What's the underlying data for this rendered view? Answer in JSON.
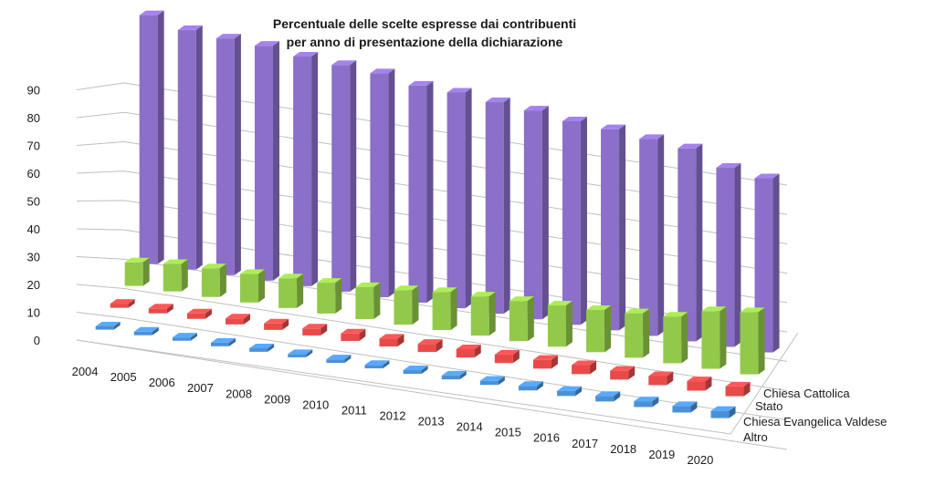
{
  "chart_data": {
    "type": "bar",
    "title_lines": [
      "Percentuale delle scelte espresse dai contribuenti",
      "per anno di presentazione della dichiarazione"
    ],
    "categories": [
      "2004",
      "2005",
      "2006",
      "2007",
      "2008",
      "2009",
      "2010",
      "2011",
      "2012",
      "2013",
      "2014",
      "2015",
      "2016",
      "2017",
      "2018",
      "2019",
      "2020"
    ],
    "y_ticks": [
      "0",
      "10",
      "20",
      "30",
      "40",
      "50",
      "60",
      "70",
      "80",
      "90"
    ],
    "ylim": [
      0,
      90
    ],
    "grid": true,
    "series": [
      {
        "name": "Altro",
        "color": "#4a90d9",
        "values": [
          1.2,
          1.3,
          1.2,
          1.3,
          1.3,
          1.2,
          1.3,
          1.3,
          1.4,
          1.5,
          1.6,
          1.8,
          2.0,
          2.2,
          2.3,
          2.6,
          2.9
        ]
      },
      {
        "name": "Chiesa Evangelica Valdese",
        "color": "#e84a4a",
        "values": [
          1.5,
          1.8,
          2.0,
          2.2,
          2.4,
          2.6,
          2.8,
          3.0,
          3.1,
          3.2,
          3.3,
          3.4,
          3.5,
          3.5,
          3.6,
          3.8,
          3.9
        ]
      },
      {
        "name": "Stato",
        "color": "#93c94a",
        "values": [
          8.5,
          10.0,
          10.5,
          10.5,
          11.0,
          11.5,
          12.0,
          13.0,
          14.5,
          15.0,
          15.5,
          16.0,
          16.5,
          17.5,
          18.5,
          23.0,
          25.0
        ]
      },
      {
        "name": "Chiesa Cattolica",
        "color": "#8b6fc9",
        "values": [
          89.8,
          87.0,
          86.5,
          86.4,
          85.0,
          84.5,
          84.0,
          82.0,
          82.0,
          81.0,
          80.5,
          79.0,
          78.6,
          77.5,
          76.5,
          71.5,
          70.0
        ]
      }
    ]
  }
}
